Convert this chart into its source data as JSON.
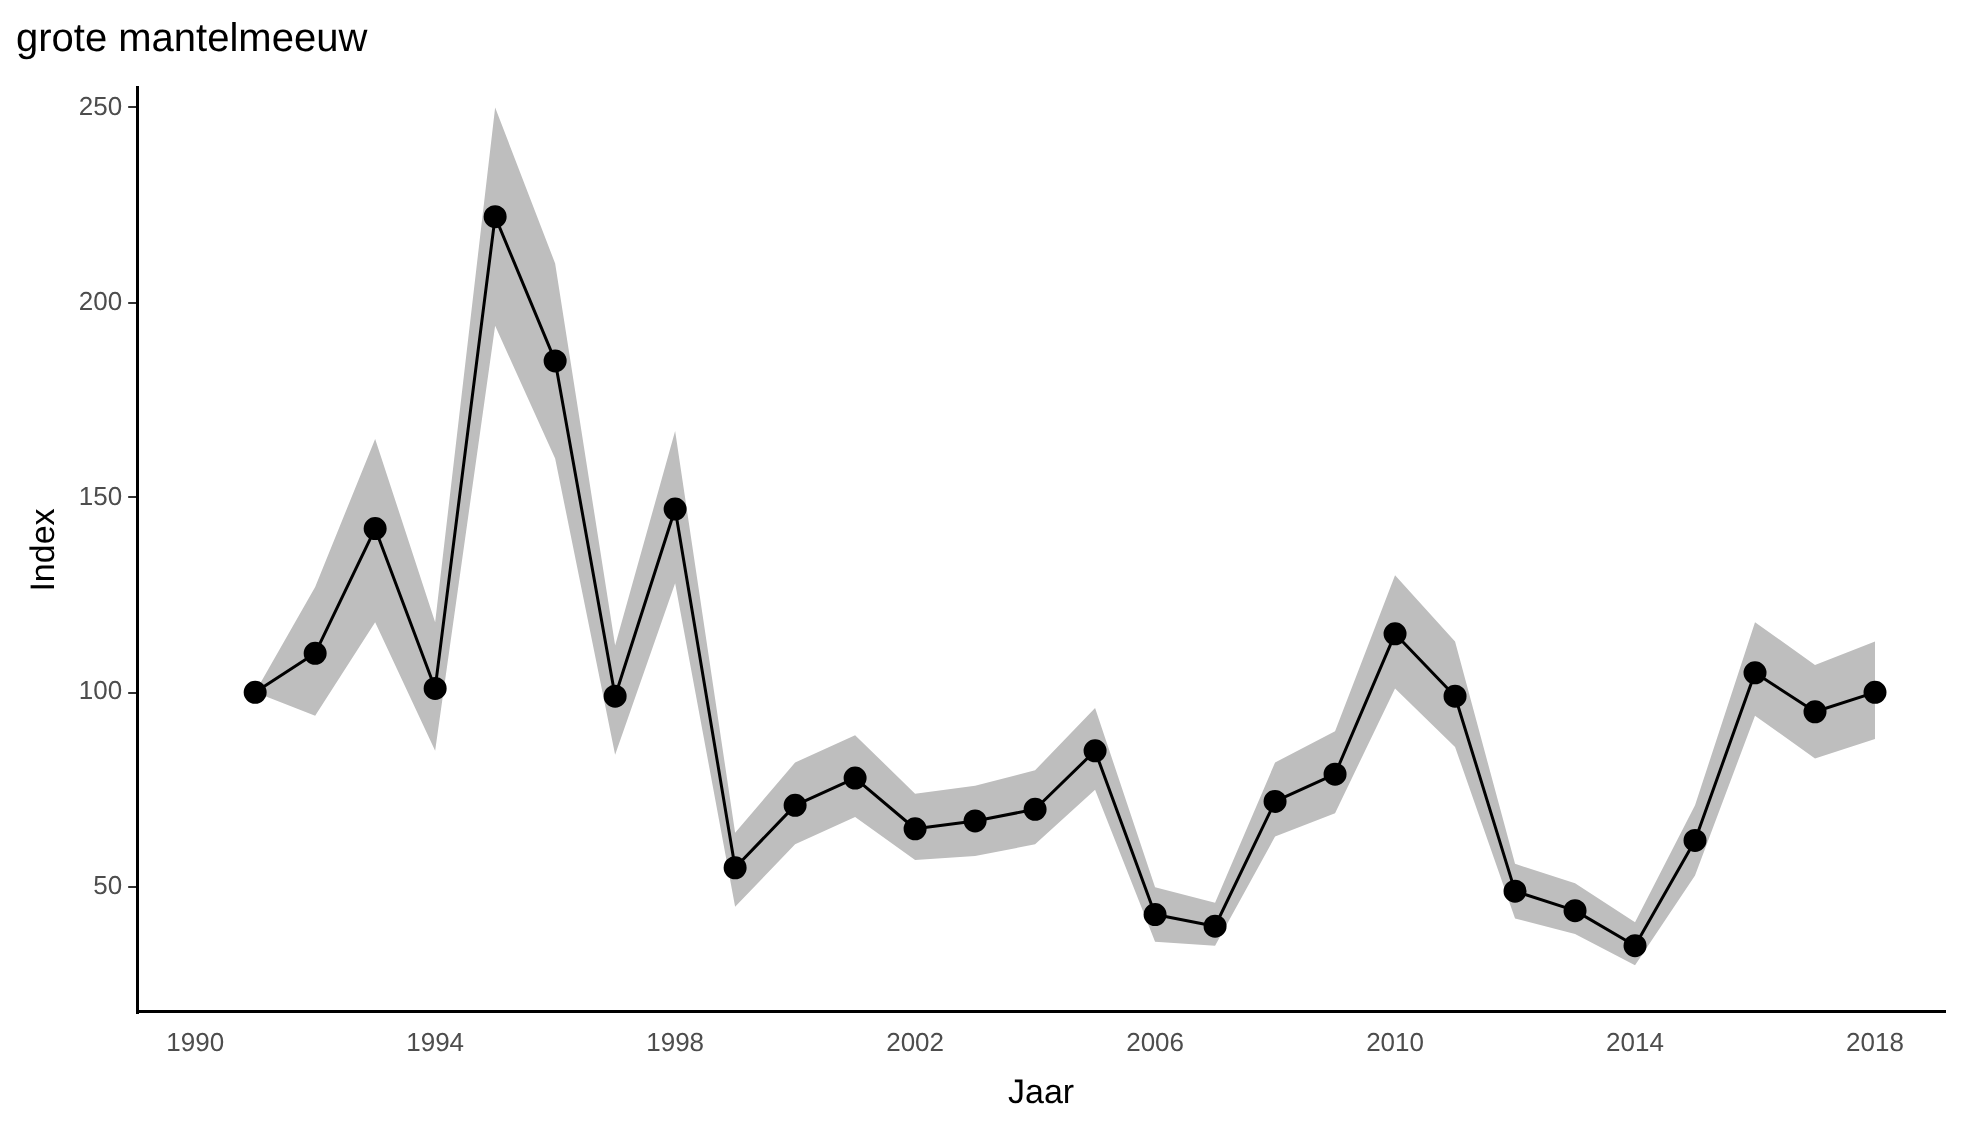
{
  "chart_data": {
    "type": "line",
    "title": "grote mantelmeeuw",
    "xlabel": "Jaar",
    "ylabel": "Index",
    "x": [
      1991,
      1992,
      1993,
      1994,
      1995,
      1996,
      1997,
      1998,
      1999,
      2000,
      2001,
      2002,
      2003,
      2004,
      2005,
      2006,
      2007,
      2008,
      2009,
      2010,
      2011,
      2012,
      2013,
      2014,
      2015,
      2016,
      2017,
      2018
    ],
    "series": [
      {
        "color": "#000000",
        "values": [
          100,
          110,
          142,
          101,
          222,
          185,
          99,
          147,
          55,
          71,
          78,
          65,
          67,
          70,
          85,
          43,
          40,
          72,
          79,
          115,
          99,
          49,
          44,
          35,
          62,
          105,
          95,
          100
        ],
        "lower": [
          100,
          94,
          118,
          85,
          194,
          160,
          84,
          128,
          45,
          61,
          68,
          57,
          58,
          61,
          75,
          36,
          35,
          63,
          69,
          101,
          86,
          42,
          38,
          30,
          53,
          94,
          83,
          88
        ],
        "upper": [
          100,
          127,
          165,
          118,
          250,
          210,
          112,
          167,
          64,
          82,
          89,
          74,
          76,
          80,
          96,
          50,
          46,
          82,
          90,
          130,
          113,
          56,
          51,
          41,
          71,
          118,
          107,
          113
        ]
      }
    ],
    "xlim": [
      1989.05,
      2019.15
    ],
    "xticks": [
      1990,
      1994,
      1998,
      2002,
      2006,
      2010,
      2014,
      2018
    ],
    "ylim": [
      18,
      255
    ],
    "yticks": [
      50,
      100,
      150,
      200,
      250
    ],
    "grid": false,
    "legend": false,
    "marker": "circle",
    "line_style": "solid"
  }
}
